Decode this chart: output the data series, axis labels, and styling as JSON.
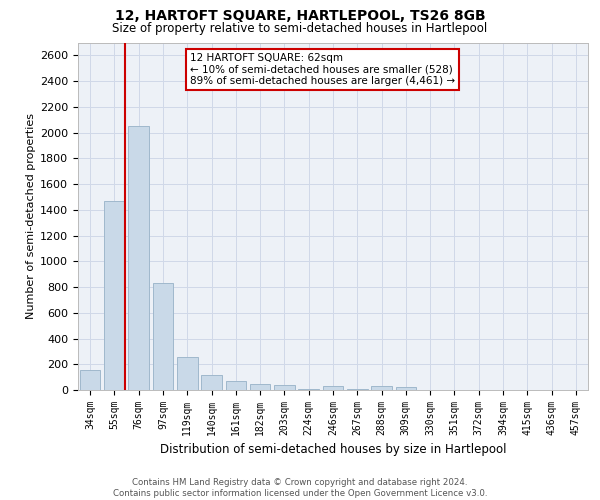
{
  "title": "12, HARTOFT SQUARE, HARTLEPOOL, TS26 8GB",
  "subtitle": "Size of property relative to semi-detached houses in Hartlepool",
  "xlabel": "Distribution of semi-detached houses by size in Hartlepool",
  "ylabel": "Number of semi-detached properties",
  "bar_labels": [
    "34sqm",
    "55sqm",
    "76sqm",
    "97sqm",
    "119sqm",
    "140sqm",
    "161sqm",
    "182sqm",
    "203sqm",
    "224sqm",
    "246sqm",
    "267sqm",
    "288sqm",
    "309sqm",
    "330sqm",
    "351sqm",
    "372sqm",
    "394sqm",
    "415sqm",
    "436sqm",
    "457sqm"
  ],
  "bar_values": [
    155,
    1470,
    2050,
    835,
    255,
    115,
    70,
    45,
    35,
    5,
    30,
    5,
    30,
    20,
    0,
    0,
    0,
    0,
    0,
    0,
    0
  ],
  "bar_color": "#c9d9e8",
  "bar_edge_color": "#a0b8cc",
  "annotation_text": "12 HARTOFT SQUARE: 62sqm\n← 10% of semi-detached houses are smaller (528)\n89% of semi-detached houses are larger (4,461) →",
  "annotation_box_color": "#ffffff",
  "annotation_border_color": "#cc0000",
  "property_line_color": "#cc0000",
  "grid_color": "#d0d8e8",
  "background_color": "#edf1f7",
  "ylim": [
    0,
    2700
  ],
  "footer_text": "Contains HM Land Registry data © Crown copyright and database right 2024.\nContains public sector information licensed under the Open Government Licence v3.0."
}
